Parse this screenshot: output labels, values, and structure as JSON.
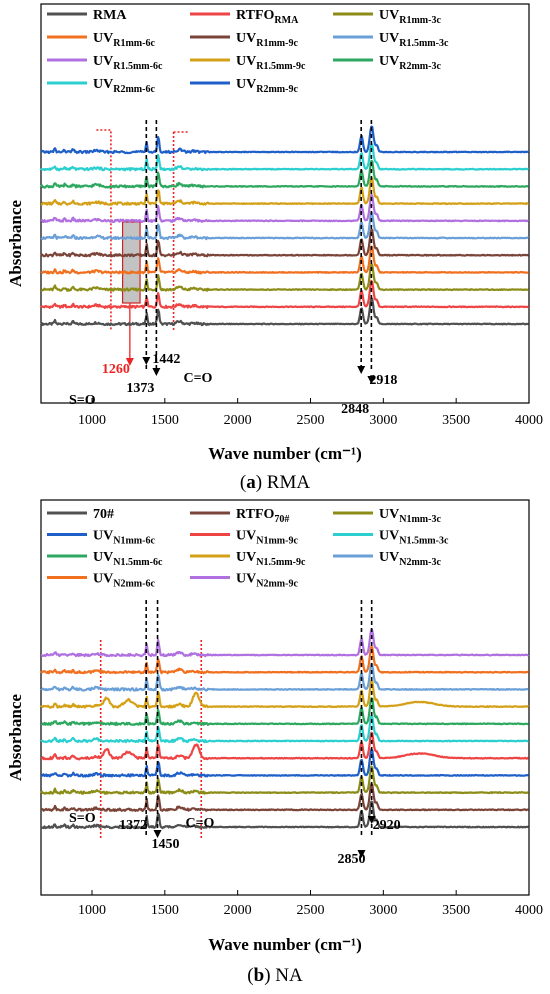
{
  "chart_data": [
    {
      "type": "line",
      "panel_label": "a",
      "caption": "RMA",
      "xlabel": "Wave number (cm⁻¹)",
      "ylabel": "Absorbance",
      "xlim": [
        650,
        4000
      ],
      "xticks": [
        1000,
        1500,
        2000,
        2500,
        3000,
        3500,
        4000
      ],
      "y_ticks_shown": false,
      "grid": false,
      "legend_placement": "top",
      "series": [
        {
          "name": "RMA",
          "color": "#505050"
        },
        {
          "name": "RTFO",
          "sub": "RMA",
          "color": "#EE4444"
        },
        {
          "name": "UV",
          "sub": "R1mm-3c",
          "color": "#8C8C18"
        },
        {
          "name": "UV",
          "sub": "R1mm-6c",
          "color": "#F07020"
        },
        {
          "name": "UV",
          "sub": "R1mm-9c",
          "color": "#7A4438"
        },
        {
          "name": "UV",
          "sub": "R1.5mm-3c",
          "color": "#6A9FD8"
        },
        {
          "name": "UV",
          "sub": "R1.5mm-6c",
          "color": "#B070E0"
        },
        {
          "name": "UV",
          "sub": "R1.5mm-9c",
          "color": "#D4A017"
        },
        {
          "name": "UV",
          "sub": "R2mm-3c",
          "color": "#2EA860"
        },
        {
          "name": "UV",
          "sub": "R2mm-6c",
          "color": "#2CCFCF"
        },
        {
          "name": "UV",
          "sub": "R2mm-9c",
          "color": "#1F5FC8"
        }
      ],
      "annotations": [
        {
          "text": "S=O",
          "x": 1030
        },
        {
          "text": "1260",
          "x": 1260,
          "color": "#EE2222"
        },
        {
          "text": "1373",
          "x": 1373
        },
        {
          "text": "1442",
          "x": 1442
        },
        {
          "text": "C=O",
          "x": 1700
        },
        {
          "text": "2848",
          "x": 2848
        },
        {
          "text": "2918",
          "x": 2918
        }
      ]
    },
    {
      "type": "line",
      "panel_label": "b",
      "caption": "NA",
      "xlabel": "Wave number (cm⁻¹)",
      "ylabel": "Absorbance",
      "xlim": [
        650,
        4000
      ],
      "xticks": [
        1000,
        1500,
        2000,
        2500,
        3000,
        3500,
        4000
      ],
      "y_ticks_shown": false,
      "grid": false,
      "legend_placement": "top",
      "series": [
        {
          "name": "70#",
          "color": "#505050"
        },
        {
          "name": "RTFO",
          "sub": "70#",
          "color": "#7A4438"
        },
        {
          "name": "UV",
          "sub": "N1mm-3c",
          "color": "#8C8C18"
        },
        {
          "name": "UV",
          "sub": "N1mm-6c",
          "color": "#1F5FC8"
        },
        {
          "name": "UV",
          "sub": "N1mm-9c",
          "color": "#EE4444"
        },
        {
          "name": "UV",
          "sub": "N1.5mm-3c",
          "color": "#2CCFCF"
        },
        {
          "name": "UV",
          "sub": "N1.5mm-6c",
          "color": "#2EA860"
        },
        {
          "name": "UV",
          "sub": "N1.5mm-9c",
          "color": "#D4A017"
        },
        {
          "name": "UV",
          "sub": "N2mm-3c",
          "color": "#6A9FD8"
        },
        {
          "name": "UV",
          "sub": "N2mm-6c",
          "color": "#F07020"
        },
        {
          "name": "UV",
          "sub": "N2mm-9c",
          "color": "#B070E0"
        }
      ],
      "annotations": [
        {
          "text": "S=O",
          "x": 1030
        },
        {
          "text": "1372",
          "x": 1372
        },
        {
          "text": "1450",
          "x": 1450
        },
        {
          "text": "C=O",
          "x": 1700
        },
        {
          "text": "2850",
          "x": 2850
        },
        {
          "text": "2920",
          "x": 2920
        }
      ]
    }
  ]
}
